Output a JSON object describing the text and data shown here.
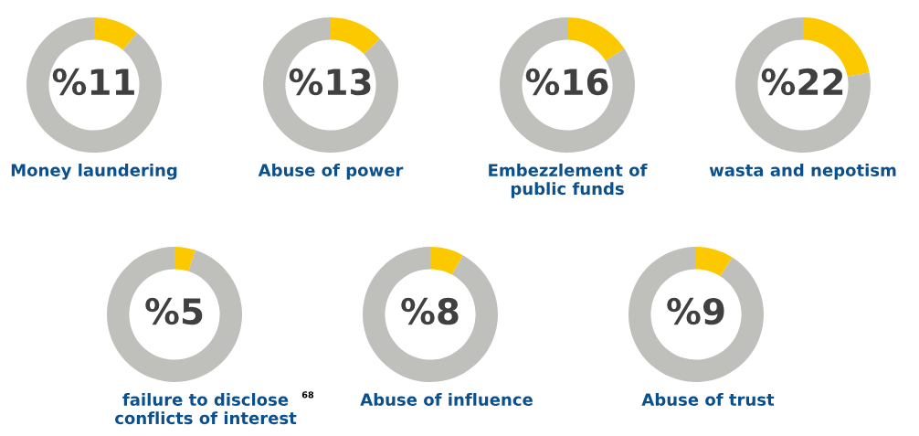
{
  "chart_data": [
    {
      "type": "donut",
      "title": "Money laundering",
      "categories": [
        null,
        null
      ],
      "values": [
        11,
        89
      ],
      "colors": [
        "#fcc800",
        "#bfc0bb"
      ],
      "value_labels": [
        "%11",
        null
      ]
    },
    {
      "type": "donut",
      "title": "Abuse of power",
      "categories": [
        null,
        null
      ],
      "values": [
        13,
        87
      ],
      "colors": [
        "#fcc800",
        "#bfc0bb"
      ],
      "value_labels": [
        "%13",
        null
      ]
    },
    {
      "type": "donut",
      "title": "Embezzlement of public funds",
      "categories": [
        null,
        null
      ],
      "values": [
        16,
        84
      ],
      "colors": [
        "#fcc800",
        "#bfc0bb"
      ],
      "value_labels": [
        "%16",
        null
      ]
    },
    {
      "type": "donut",
      "title": "wasta and nepotism",
      "categories": [
        null,
        null
      ],
      "values": [
        22,
        78
      ],
      "colors": [
        "#fcc800",
        "#bfc0bb"
      ],
      "value_labels": [
        "%22",
        null
      ]
    },
    {
      "type": "donut",
      "title": "failure to disclose conflicts of interest",
      "categories": [
        null,
        null
      ],
      "values": [
        5,
        95
      ],
      "colors": [
        "#fcc800",
        "#bfc0bb"
      ],
      "value_labels": [
        "%5",
        null
      ],
      "annotations": [
        "68"
      ]
    },
    {
      "type": "donut",
      "title": "Abuse of influence",
      "categories": [
        null,
        null
      ],
      "values": [
        8,
        92
      ],
      "colors": [
        "#fcc800",
        "#bfc0bb"
      ],
      "value_labels": [
        "%8",
        null
      ]
    },
    {
      "type": "donut",
      "title": "Abuse of trust",
      "categories": [
        null,
        null
      ],
      "values": [
        9,
        91
      ],
      "colors": [
        "#fcc800",
        "#bfc0bb"
      ],
      "value_labels": [
        "%9",
        null
      ]
    }
  ]
}
